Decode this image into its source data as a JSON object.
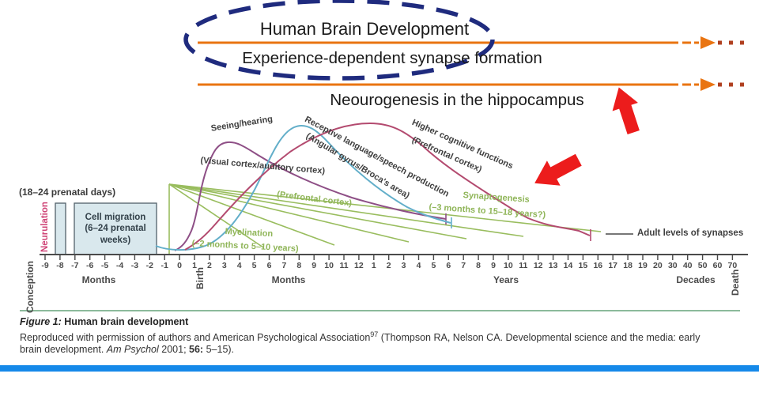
{
  "slide": {
    "title": "Human Brain Development",
    "subtitle1": "Experience-dependent synapse formation",
    "subtitle2": "Neourogenesis in the hippocampus"
  },
  "colors": {
    "ellipse": "#1f2b7e",
    "orange": "#e97411",
    "orange_dots": "#b04020",
    "red_arrow": "#ec1c1c",
    "green": "#99bd5e",
    "pink": "#cf4577",
    "axis": "#4a4a4a",
    "box_fill": "#d9e8ed",
    "box_border": "#52616b",
    "separator": "#8cba9b",
    "bottom_bar": "#1589e9"
  },
  "figure": {
    "annotations": {
      "prenatal_days": "(18–24 prenatal days)",
      "neurulation": "Neurulation",
      "cell_migration_l1": "Cell migration",
      "cell_migration_l2": "(6–24 prenatal",
      "cell_migration_l3": "weeks)"
    },
    "series": {
      "seeing": {
        "label": "Seeing/hearing",
        "sub": "(Visual cortex/auditory cortex)",
        "color": "#8e4f86"
      },
      "receptive": {
        "label": "Receptive language/speech production",
        "sub": "(Angular gyrus/Broca's area)",
        "color": "#62aec9"
      },
      "higher": {
        "label": "Higher cognitive functions",
        "sub": "(Prefrontal cortex)",
        "color": "#b34a6f"
      },
      "synaptogenesis": {
        "label": "Synaptogenesis",
        "sub": "(–3 months to 15–18 years?)",
        "color": "#99bd5e"
      },
      "myelination": {
        "label": "Myelination",
        "sub": "(–2 months to 5–10 years)",
        "extra": "(Prefrontal cortex)",
        "color": "#99bd5e"
      }
    },
    "legend": {
      "adult_synapses": "Adult levels of synapses"
    },
    "axis": {
      "ticks": [
        "-9",
        "-8",
        "-7",
        "-6",
        "-5",
        "-4",
        "-3",
        "-2",
        "-1",
        "0",
        "1",
        "2",
        "3",
        "4",
        "5",
        "6",
        "7",
        "8",
        "9",
        "10",
        "11",
        "12",
        "1",
        "2",
        "3",
        "4",
        "5",
        "6",
        "7",
        "8",
        "9",
        "10",
        "11",
        "12",
        "13",
        "14",
        "15",
        "16",
        "17",
        "18",
        "19",
        "20",
        "30",
        "40",
        "50",
        "60",
        "70"
      ],
      "labels": {
        "conception": "Conception",
        "months_prenatal": "Months",
        "birth": "Birth",
        "months_postnatal": "Months",
        "years": "Years",
        "decades": "Decades",
        "death": "Death"
      }
    },
    "caption": {
      "label": "Figure 1:",
      "title": "Human brain development",
      "body_start": "Reproduced with permission of authors and American Psychological Association",
      "ref_sup": "97",
      "body_mid": " (Thompson RA, Nelson CA. Developmental science and the media: early brain development. ",
      "journal": "Am Psychol",
      "body_end": " 2001; ",
      "volume": "56:",
      "pages": " 5–15)."
    }
  },
  "chart_data": {
    "type": "line",
    "title": "Human brain development",
    "x_axis": {
      "segments": [
        "Conception",
        "Months (prenatal −9 to −1)",
        "Birth (0)",
        "Months (1–12)",
        "Years (1–20)",
        "Decades (30–70)",
        "Death"
      ],
      "ticks": [
        "-9",
        "-8",
        "-7",
        "-6",
        "-5",
        "-4",
        "-3",
        "-2",
        "-1",
        "0",
        "1",
        "2",
        "3",
        "4",
        "5",
        "6",
        "7",
        "8",
        "9",
        "10",
        "11",
        "12",
        "1",
        "2",
        "3",
        "4",
        "5",
        "6",
        "7",
        "8",
        "9",
        "10",
        "11",
        "12",
        "13",
        "14",
        "15",
        "16",
        "17",
        "18",
        "19",
        "20",
        "30",
        "40",
        "50",
        "60",
        "70"
      ]
    },
    "y_axis": {
      "label": "",
      "note": "No numeric scale shown; v = relative level 0–1 estimated from curve heights"
    },
    "series": [
      {
        "name": "Seeing/hearing (visual cortex/auditory cortex)",
        "color": "#8e4f86",
        "points": [
          {
            "t": "-3 months",
            "v": 0.0
          },
          {
            "t": "-1 month",
            "v": 0.15
          },
          {
            "t": "birth",
            "v": 0.55
          },
          {
            "t": "3 months",
            "v": 1.0
          },
          {
            "t": "9 months",
            "v": 0.8
          },
          {
            "t": "2 years",
            "v": 0.55
          },
          {
            "t": "4 years",
            "v": 0.4
          },
          {
            "t": "5 years",
            "v": 0.32
          }
        ],
        "end_marker": "terminal tick at ~5 years"
      },
      {
        "name": "Receptive language/speech production (angular gyrus/Broca's area)",
        "color": "#62aec9",
        "points": [
          {
            "t": "-3 months",
            "v": 0.05
          },
          {
            "t": "birth",
            "v": 0.1
          },
          {
            "t": "4 months",
            "v": 0.6
          },
          {
            "t": "8 months",
            "v": 1.0
          },
          {
            "t": "18 months",
            "v": 0.75
          },
          {
            "t": "3 years",
            "v": 0.45
          },
          {
            "t": "5 years",
            "v": 0.28
          }
        ],
        "end_marker": "terminal tick at ~5 years"
      },
      {
        "name": "Higher cognitive functions (prefrontal cortex)",
        "color": "#b34a6f",
        "points": [
          {
            "t": "-2 months",
            "v": 0.05
          },
          {
            "t": "birth",
            "v": 0.25
          },
          {
            "t": "6 months",
            "v": 0.75
          },
          {
            "t": "1 year",
            "v": 0.95
          },
          {
            "t": "2 years",
            "v": 1.0
          },
          {
            "t": "4 years",
            "v": 0.8
          },
          {
            "t": "8 years",
            "v": 0.5
          },
          {
            "t": "12 years",
            "v": 0.28
          },
          {
            "t": "15 years",
            "v": 0.15
          }
        ],
        "end_marker": "terminal tick at ~15 years"
      },
      {
        "name": "Myelination (prefrontal cortex)",
        "color": "#99bd5e",
        "style": "fan of straight lines from −2 months spreading to ~5–10 years",
        "range": "−2 months to 5–10 years"
      }
    ],
    "annotations": [
      {
        "text": "Neurulation (18–24 prenatal days)",
        "position": "narrow bar at ≈ −8 months"
      },
      {
        "text": "Cell migration (6–24 prenatal weeks)",
        "position": "box from ≈ −7.5 to −3 months"
      },
      {
        "text": "Synaptogenesis (−3 months to 15–18 years?)",
        "position": "green label near descending curves"
      },
      {
        "text": "Adult levels of synapses",
        "position": "reference line at right end"
      }
    ],
    "legend_position": "labels written along the curves",
    "grid": false
  }
}
